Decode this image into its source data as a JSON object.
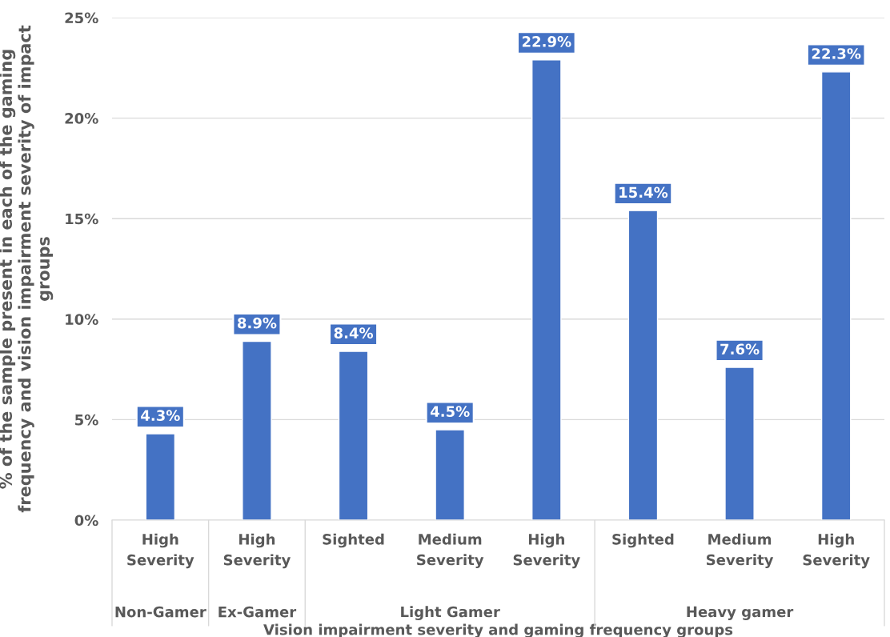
{
  "chart_data": {
    "type": "bar",
    "xlabel": "Vision impairment severity and gaming frequency groups",
    "ylabel": "% of the sample present in each of the gaming frequency and vision impairment severity of impact groups",
    "categories": [
      "High Severity",
      "High Severity",
      "Sighted",
      "Medium Severity",
      "High Severity",
      "Sighted",
      "Medium Severity",
      "High Severity"
    ],
    "values": [
      4.3,
      8.9,
      8.4,
      4.5,
      22.9,
      15.4,
      7.6,
      22.3
    ],
    "value_labels": [
      "4.3%",
      "8.9%",
      "8.4%",
      "4.5%",
      "22.9%",
      "15.4%",
      "7.6%",
      "22.3%"
    ],
    "color": "#4472c4",
    "annotations": [
      "Non-Gamer",
      "Ex-Gamer",
      "Light Gamer",
      "Heavy gamer"
    ],
    "ylim": [
      0,
      25
    ],
    "yticks": [
      {
        "value": 0,
        "label": "0%"
      },
      {
        "value": 5,
        "label": "5%"
      },
      {
        "value": 10,
        "label": "10%"
      },
      {
        "value": 15,
        "label": "15%"
      },
      {
        "value": 20,
        "label": "20%"
      },
      {
        "value": 25,
        "label": "25%"
      }
    ],
    "grid": "y"
  }
}
